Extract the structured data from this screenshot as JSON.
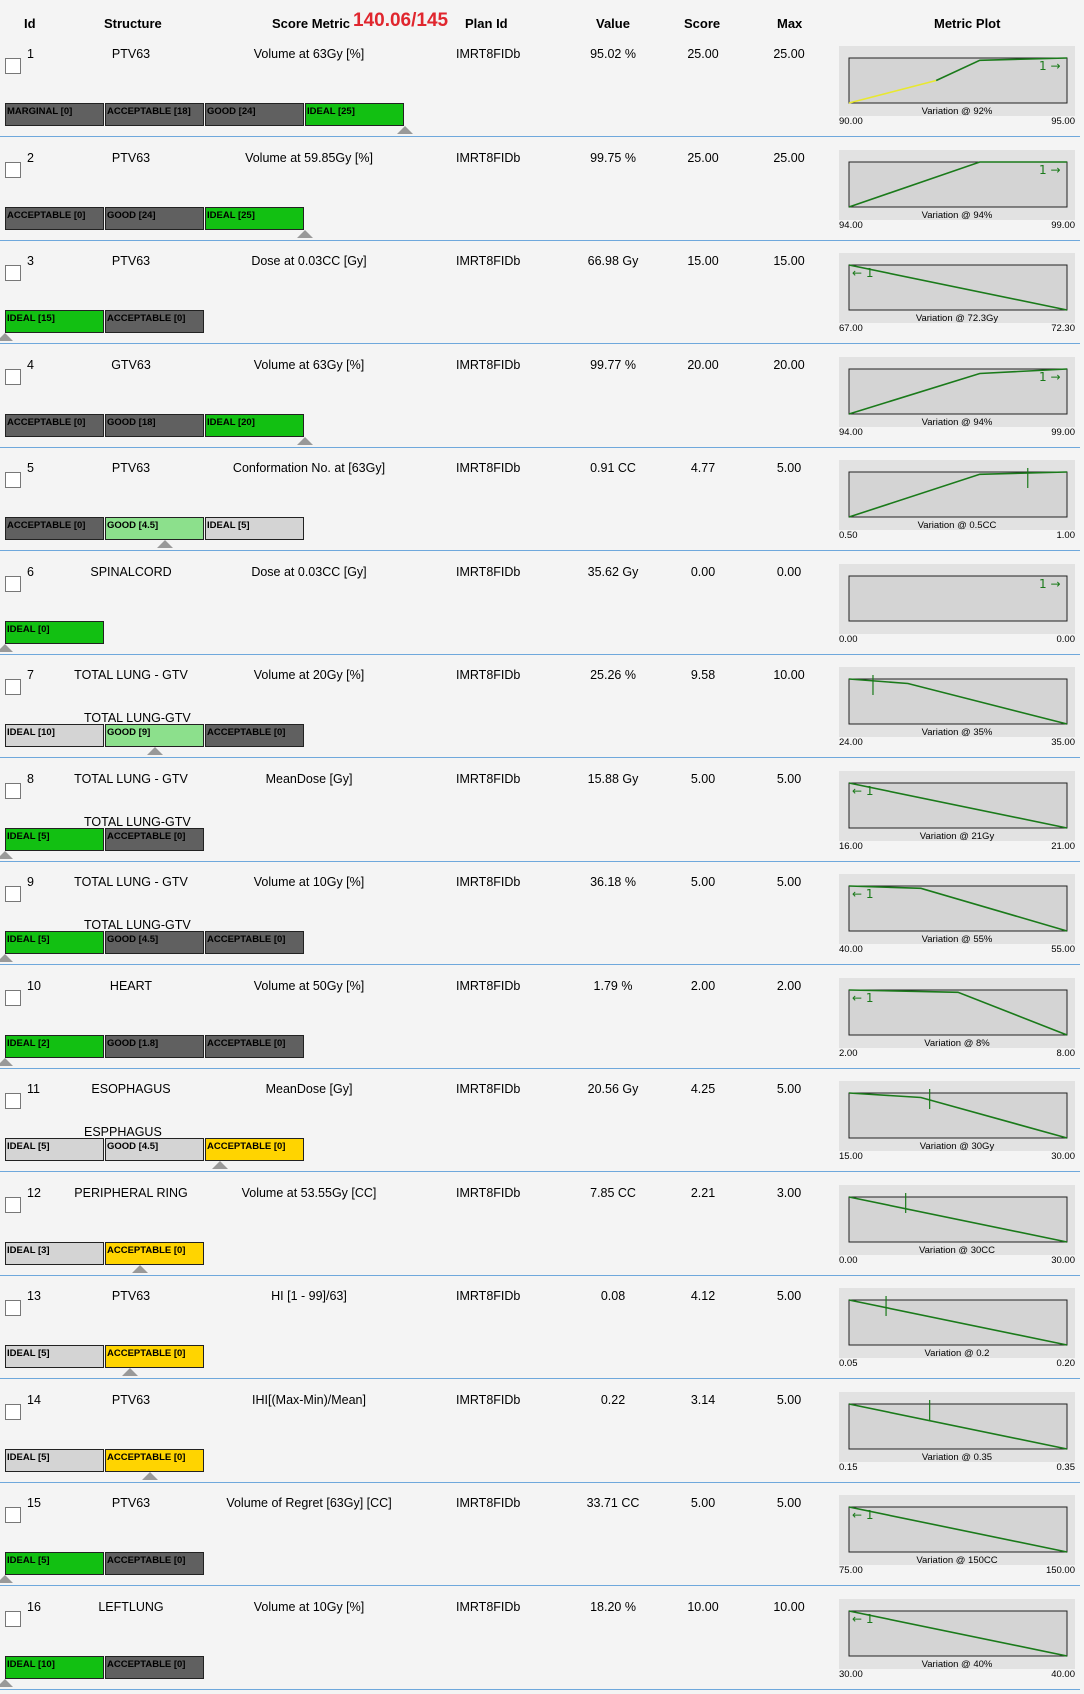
{
  "header": {
    "id": "Id",
    "structure": "Structure",
    "score_metric": "Score Metric",
    "score_total": "140.06/145",
    "plan_id": "Plan Id",
    "value": "Value",
    "score": "Score",
    "max": "Max",
    "metric_plot": "Metric Plot"
  },
  "colors": {
    "ideal": "#12c012",
    "good_active": "#8ce08c",
    "acceptable_active": "#ffd400",
    "inactive": "#606060",
    "unachieved": "#d4d4d4",
    "plot_line": "#1a7a1a",
    "plot_line_warn": "#e8e830",
    "separator": "#6fa8dc"
  },
  "rows": [
    {
      "id": "1",
      "structure": "PTV63",
      "metric": "Volume at 63Gy [%]",
      "plan": "IMRT8FIDb",
      "value": "95.02 %",
      "score": "25.00",
      "max": "25.00",
      "sublabel": "",
      "segments": [
        {
          "label": "MARGINAL [0]",
          "c": "dg"
        },
        {
          "label": "ACCEPTABLE [18]",
          "c": "dg"
        },
        {
          "label": "GOOD [24]",
          "c": "dg"
        },
        {
          "label": "IDEAL [25]",
          "c": "g"
        }
      ],
      "marker": 4,
      "plot": {
        "min": "90.00",
        "max": "95.00",
        "variation": "Variation @ 92%",
        "arrow": "right",
        "line": [
          [
            0,
            1
          ],
          [
            0.4,
            0.5
          ],
          [
            0.6,
            0.05
          ],
          [
            1,
            0
          ]
        ],
        "warn": true
      }
    },
    {
      "id": "2",
      "structure": "PTV63",
      "metric": "Volume at 59.85Gy [%]",
      "plan": "IMRT8FIDb",
      "value": "99.75 %",
      "score": "25.00",
      "max": "25.00",
      "sublabel": "",
      "segments": [
        {
          "label": "ACCEPTABLE [0]",
          "c": "dg"
        },
        {
          "label": "GOOD [24]",
          "c": "dg"
        },
        {
          "label": "IDEAL [25]",
          "c": "g"
        }
      ],
      "marker": 3,
      "plot": {
        "min": "94.00",
        "max": "99.00",
        "variation": "Variation @ 94%",
        "arrow": "right",
        "line": [
          [
            0,
            1
          ],
          [
            0.6,
            0
          ],
          [
            1,
            0
          ]
        ]
      }
    },
    {
      "id": "3",
      "structure": "PTV63",
      "metric": "Dose at 0.03CC [Gy]",
      "plan": "IMRT8FIDb",
      "value": "66.98 Gy",
      "score": "15.00",
      "max": "15.00",
      "sublabel": "",
      "segments": [
        {
          "label": "IDEAL [15]",
          "c": "g"
        },
        {
          "label": "ACCEPTABLE [0]",
          "c": "dg"
        }
      ],
      "marker": 0,
      "plot": {
        "min": "67.00",
        "max": "72.30",
        "variation": "Variation @ 72.3Gy",
        "arrow": "left",
        "line": [
          [
            0,
            0
          ],
          [
            1,
            1
          ]
        ]
      }
    },
    {
      "id": "4",
      "structure": "GTV63",
      "metric": "Volume at 63Gy [%]",
      "plan": "IMRT8FIDb",
      "value": "99.77 %",
      "score": "20.00",
      "max": "20.00",
      "sublabel": "",
      "segments": [
        {
          "label": "ACCEPTABLE [0]",
          "c": "dg"
        },
        {
          "label": "GOOD [18]",
          "c": "dg"
        },
        {
          "label": "IDEAL [20]",
          "c": "g"
        }
      ],
      "marker": 3,
      "plot": {
        "min": "94.00",
        "max": "99.00",
        "variation": "Variation @ 94%",
        "arrow": "right",
        "line": [
          [
            0,
            1
          ],
          [
            0.6,
            0.1
          ],
          [
            1,
            0
          ]
        ]
      }
    },
    {
      "id": "5",
      "structure": "PTV63",
      "metric": "Conformation No. at [63Gy]",
      "plan": "IMRT8FIDb",
      "value": "0.91 CC",
      "score": "4.77",
      "max": "5.00",
      "sublabel": "",
      "segments": [
        {
          "label": "ACCEPTABLE [0]",
          "c": "dg"
        },
        {
          "label": "GOOD [4.5]",
          "c": "lg"
        },
        {
          "label": "IDEAL [5]",
          "c": "lgy"
        }
      ],
      "marker": 1.6,
      "plot": {
        "min": "0.50",
        "max": "1.00",
        "variation": "Variation @ 0.5CC",
        "arrow": "none",
        "line": [
          [
            0,
            1
          ],
          [
            0.6,
            0.05
          ],
          [
            1,
            0
          ]
        ],
        "tick": 0.82
      }
    },
    {
      "id": "6",
      "structure": "SPINALCORD",
      "metric": "Dose at 0.03CC [Gy]",
      "plan": "IMRT8FIDb",
      "value": "35.62 Gy",
      "score": "0.00",
      "max": "0.00",
      "sublabel": "",
      "segments": [
        {
          "label": "IDEAL [0]",
          "c": "g"
        }
      ],
      "marker": 0,
      "plot": {
        "min": "0.00",
        "max": "0.00",
        "variation": "",
        "arrow": "right",
        "line": []
      }
    },
    {
      "id": "7",
      "structure": "TOTAL LUNG - GTV",
      "metric": "Volume at 20Gy [%]",
      "plan": "IMRT8FIDb",
      "value": "25.26 %",
      "score": "9.58",
      "max": "10.00",
      "sublabel": "TOTAL LUNG-GTV",
      "segments": [
        {
          "label": "IDEAL [10]",
          "c": "lgy"
        },
        {
          "label": "GOOD [9]",
          "c": "lg"
        },
        {
          "label": "ACCEPTABLE [0]",
          "c": "dg"
        }
      ],
      "marker": 1.5,
      "plot": {
        "min": "24.00",
        "max": "35.00",
        "variation": "Variation @ 35%",
        "arrow": "none",
        "line": [
          [
            0,
            0
          ],
          [
            0.27,
            0.1
          ],
          [
            1,
            1
          ]
        ],
        "tick": 0.11
      }
    },
    {
      "id": "8",
      "structure": "TOTAL LUNG - GTV",
      "metric": "MeanDose [Gy]",
      "plan": "IMRT8FIDb",
      "value": "15.88 Gy",
      "score": "5.00",
      "max": "5.00",
      "sublabel": "TOTAL LUNG-GTV",
      "segments": [
        {
          "label": "IDEAL [5]",
          "c": "g"
        },
        {
          "label": "ACCEPTABLE [0]",
          "c": "dg"
        }
      ],
      "marker": 0,
      "plot": {
        "min": "16.00",
        "max": "21.00",
        "variation": "Variation @ 21Gy",
        "arrow": "left",
        "line": [
          [
            0,
            0
          ],
          [
            1,
            1
          ]
        ]
      }
    },
    {
      "id": "9",
      "structure": "TOTAL LUNG - GTV",
      "metric": "Volume at 10Gy [%]",
      "plan": "IMRT8FIDb",
      "value": "36.18 %",
      "score": "5.00",
      "max": "5.00",
      "sublabel": "TOTAL LUNG-GTV",
      "segments": [
        {
          "label": "IDEAL [5]",
          "c": "g"
        },
        {
          "label": "GOOD [4.5]",
          "c": "dg"
        },
        {
          "label": "ACCEPTABLE [0]",
          "c": "dg"
        }
      ],
      "marker": 0,
      "plot": {
        "min": "40.00",
        "max": "55.00",
        "variation": "Variation @ 55%",
        "arrow": "left",
        "line": [
          [
            0,
            0
          ],
          [
            0.33,
            0.05
          ],
          [
            1,
            1
          ]
        ]
      }
    },
    {
      "id": "10",
      "structure": "HEART",
      "metric": "Volume at 50Gy [%]",
      "plan": "IMRT8FIDb",
      "value": "1.79 %",
      "score": "2.00",
      "max": "2.00",
      "sublabel": "",
      "segments": [
        {
          "label": "IDEAL [2]",
          "c": "g"
        },
        {
          "label": "GOOD [1.8]",
          "c": "dg"
        },
        {
          "label": "ACCEPTABLE [0]",
          "c": "dg"
        }
      ],
      "marker": 0,
      "plot": {
        "min": "2.00",
        "max": "8.00",
        "variation": "Variation @ 8%",
        "arrow": "left",
        "line": [
          [
            0,
            0
          ],
          [
            0.5,
            0.05
          ],
          [
            1,
            1
          ]
        ]
      }
    },
    {
      "id": "11",
      "structure": "ESOPHAGUS",
      "metric": "MeanDose [Gy]",
      "plan": "IMRT8FIDb",
      "value": "20.56 Gy",
      "score": "4.25",
      "max": "5.00",
      "sublabel": "ESPPHAGUS",
      "segments": [
        {
          "label": "IDEAL [5]",
          "c": "lgy"
        },
        {
          "label": "GOOD [4.5]",
          "c": "lgy"
        },
        {
          "label": "ACCEPTABLE [0]",
          "c": "y"
        }
      ],
      "marker": 2.15,
      "plot": {
        "min": "15.00",
        "max": "30.00",
        "variation": "Variation @ 30Gy",
        "arrow": "none",
        "line": [
          [
            0,
            0
          ],
          [
            0.33,
            0.1
          ],
          [
            1,
            1
          ]
        ],
        "tick": 0.37
      }
    },
    {
      "id": "12",
      "structure": "PERIPHERAL RING",
      "metric": "Volume at 53.55Gy [CC]",
      "plan": "IMRT8FIDb",
      "value": "7.85 CC",
      "score": "2.21",
      "max": "3.00",
      "sublabel": "",
      "segments": [
        {
          "label": "IDEAL [3]",
          "c": "lgy"
        },
        {
          "label": "ACCEPTABLE [0]",
          "c": "y"
        }
      ],
      "marker": 1.35,
      "plot": {
        "min": "0.00",
        "max": "30.00",
        "variation": "Variation @ 30CC",
        "arrow": "none",
        "line": [
          [
            0,
            0
          ],
          [
            1,
            1
          ]
        ],
        "tick": 0.26
      }
    },
    {
      "id": "13",
      "structure": "PTV63",
      "metric": "HI [1 - 99]/63]",
      "plan": "IMRT8FIDb",
      "value": "0.08",
      "score": "4.12",
      "max": "5.00",
      "sublabel": "",
      "segments": [
        {
          "label": "IDEAL [5]",
          "c": "lgy"
        },
        {
          "label": "ACCEPTABLE [0]",
          "c": "y"
        }
      ],
      "marker": 1.25,
      "plot": {
        "min": "0.05",
        "max": "0.20",
        "variation": "Variation @ 0.2",
        "arrow": "none",
        "line": [
          [
            0,
            0
          ],
          [
            1,
            1
          ]
        ],
        "tick": 0.17
      }
    },
    {
      "id": "14",
      "structure": "PTV63",
      "metric": "IHI[(Max-Min)/Mean]",
      "plan": "IMRT8FIDb",
      "value": "0.22",
      "score": "3.14",
      "max": "5.00",
      "sublabel": "",
      "segments": [
        {
          "label": "IDEAL [5]",
          "c": "lgy"
        },
        {
          "label": "ACCEPTABLE [0]",
          "c": "y"
        }
      ],
      "marker": 1.45,
      "plot": {
        "min": "0.15",
        "max": "0.35",
        "variation": "Variation @ 0.35",
        "arrow": "none",
        "line": [
          [
            0,
            0
          ],
          [
            1,
            1
          ]
        ],
        "tick": 0.37
      }
    },
    {
      "id": "15",
      "structure": "PTV63",
      "metric": "Volume of Regret [63Gy] [CC]",
      "plan": "IMRT8FIDb",
      "value": "33.71 CC",
      "score": "5.00",
      "max": "5.00",
      "sublabel": "",
      "segments": [
        {
          "label": "IDEAL [5]",
          "c": "g"
        },
        {
          "label": "ACCEPTABLE [0]",
          "c": "dg"
        }
      ],
      "marker": 0,
      "plot": {
        "min": "75.00",
        "max": "150.00",
        "variation": "Variation @ 150CC",
        "arrow": "left",
        "line": [
          [
            0,
            0
          ],
          [
            1,
            1
          ]
        ]
      }
    },
    {
      "id": "16",
      "structure": "LEFTLUNG",
      "metric": "Volume at 10Gy [%]",
      "plan": "IMRT8FIDb",
      "value": "18.20 %",
      "score": "10.00",
      "max": "10.00",
      "sublabel": "",
      "segments": [
        {
          "label": "IDEAL [10]",
          "c": "g"
        },
        {
          "label": "ACCEPTABLE [0]",
          "c": "dg"
        }
      ],
      "marker": 0,
      "plot": {
        "min": "30.00",
        "max": "40.00",
        "variation": "Variation @ 40%",
        "arrow": "left",
        "line": [
          [
            0,
            0
          ],
          [
            1,
            1
          ]
        ]
      }
    }
  ]
}
